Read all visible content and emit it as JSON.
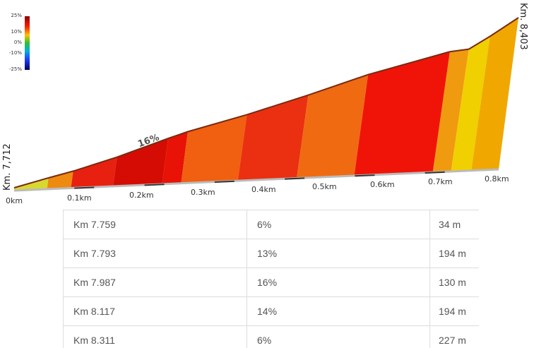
{
  "chart_data": {
    "type": "area",
    "title": "",
    "start_label": "Km. 7,712",
    "end_label": "Km. 8,403",
    "x_unit": "km",
    "xlim": [
      0,
      0.691
    ],
    "ticks": [
      "0km",
      "0.1km",
      "0.2km",
      "0.3km",
      "0.4km",
      "0.5km",
      "0.6km",
      "0.7km",
      "0.8km"
    ],
    "annotation": {
      "text": "16%",
      "x": 0.21
    },
    "legend": {
      "labels": [
        "25%",
        "10%",
        "0%",
        "-10%",
        "-25%"
      ],
      "values": [
        25,
        10,
        0,
        -10,
        -25
      ]
    },
    "segments": [
      {
        "x0": 0.0,
        "x1": 0.047,
        "gradient": 6,
        "color": "#d8d830"
      },
      {
        "x0": 0.047,
        "x1": 0.081,
        "gradient": 13,
        "color": "#ee8a10"
      },
      {
        "x0": 0.081,
        "x1": 0.141,
        "gradient": 16,
        "color": "#e82010"
      },
      {
        "x0": 0.141,
        "x1": 0.211,
        "gradient": 16,
        "color": "#d40c04"
      },
      {
        "x0": 0.211,
        "x1": 0.238,
        "gradient": 16,
        "color": "#e81206"
      },
      {
        "x0": 0.238,
        "x1": 0.319,
        "gradient": 14,
        "color": "#f06010"
      },
      {
        "x0": 0.319,
        "x1": 0.403,
        "gradient": 14,
        "color": "#ea3010"
      },
      {
        "x0": 0.403,
        "x1": 0.485,
        "gradient": 14,
        "color": "#f06a12"
      },
      {
        "x0": 0.485,
        "x1": 0.597,
        "gradient": 16,
        "color": "#f01408"
      },
      {
        "x0": 0.597,
        "x1": 0.623,
        "gradient": 10,
        "color": "#f09a10"
      },
      {
        "x0": 0.623,
        "x1": 0.652,
        "gradient": 6,
        "color": "#f0d000"
      },
      {
        "x0": 0.652,
        "x1": 0.691,
        "gradient": 10,
        "color": "#f0a800"
      }
    ],
    "profile": [
      [
        0.0,
        0.0
      ],
      [
        0.047,
        0.058
      ],
      [
        0.081,
        0.098
      ],
      [
        0.141,
        0.18
      ],
      [
        0.211,
        0.29
      ],
      [
        0.238,
        0.33
      ],
      [
        0.319,
        0.43
      ],
      [
        0.403,
        0.545
      ],
      [
        0.485,
        0.665
      ],
      [
        0.597,
        0.8
      ],
      [
        0.623,
        0.815
      ],
      [
        0.652,
        0.89
      ],
      [
        0.691,
        1.0
      ]
    ]
  },
  "table": {
    "rows": [
      {
        "km": "Km 7.759",
        "gradient": "6%",
        "length": "34 m"
      },
      {
        "km": "Km 7.793",
        "gradient": "13%",
        "length": "194 m"
      },
      {
        "km": "Km 7.987",
        "gradient": "16%",
        "length": "130 m"
      },
      {
        "km": "Km 8.117",
        "gradient": "14%",
        "length": "194 m"
      },
      {
        "km": "Km 8.311",
        "gradient": "6%",
        "length": "227 m"
      }
    ]
  }
}
